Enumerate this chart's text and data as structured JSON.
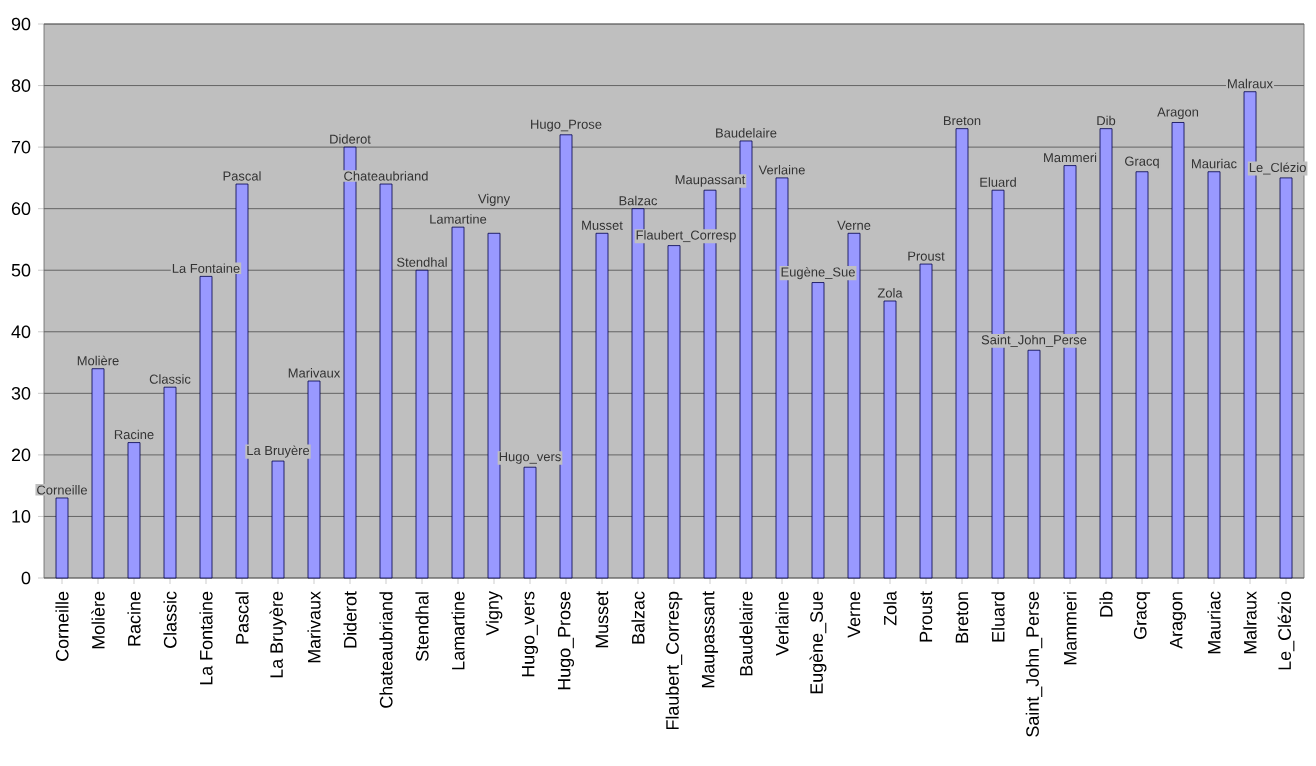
{
  "chart_data": {
    "type": "bar",
    "categories": [
      "Corneille",
      "Molière",
      "Racine",
      "Classic",
      "La Fontaine",
      "Pascal",
      "La Bruyère",
      "Marivaux",
      "Diderot",
      "Chateaubriand",
      "Stendhal",
      "Lamartine",
      "Vigny",
      "Hugo_vers",
      "Hugo_Prose",
      "Musset",
      "Balzac",
      "Flaubert_Corresp",
      "Maupassant",
      "Baudelaire",
      "Verlaine",
      "Eugène_Sue",
      "Verne",
      "Zola",
      "Proust",
      "Breton",
      "Eluard",
      "Saint_John_Perse",
      "Mammeri",
      "Dib",
      "Gracq",
      "Aragon",
      "Mauriac",
      "Malraux",
      "Le_Clézio"
    ],
    "values": [
      13,
      34,
      22,
      31,
      49,
      64,
      19,
      32,
      70,
      64,
      50,
      57,
      56,
      18,
      72,
      56,
      60,
      54,
      63,
      71,
      65,
      48,
      56,
      45,
      51,
      73,
      63,
      37,
      67,
      73,
      66,
      74,
      66,
      79,
      65
    ],
    "value_labels": [
      "Corneille",
      "Molière",
      "Racine",
      "Classic",
      "La Fontaine",
      "Pascal",
      "La Bruyère",
      "Marivaux",
      "Diderot",
      "Chateaubriand",
      "Stendhal",
      "Lamartine",
      "Vigny",
      "Hugo_vers",
      "Hugo_Prose",
      "Musset",
      "Balzac",
      "Flaubert_Corresp",
      "Maupassant",
      "Baudelaire",
      "Verlaine",
      "Eugène_Sue",
      "Verne",
      "Zola",
      "Proust",
      "Breton",
      "Eluard",
      "Saint_John_Perse",
      "Mammeri",
      "Dib",
      "Gracq",
      "Aragon",
      "Mauriac",
      "Malraux",
      "Le_Clézio"
    ],
    "color": "#9999ff",
    "ylim": [
      0,
      90
    ],
    "yticks": [
      0,
      10,
      20,
      30,
      40,
      50,
      60,
      70,
      80,
      90
    ],
    "grid": "y"
  }
}
